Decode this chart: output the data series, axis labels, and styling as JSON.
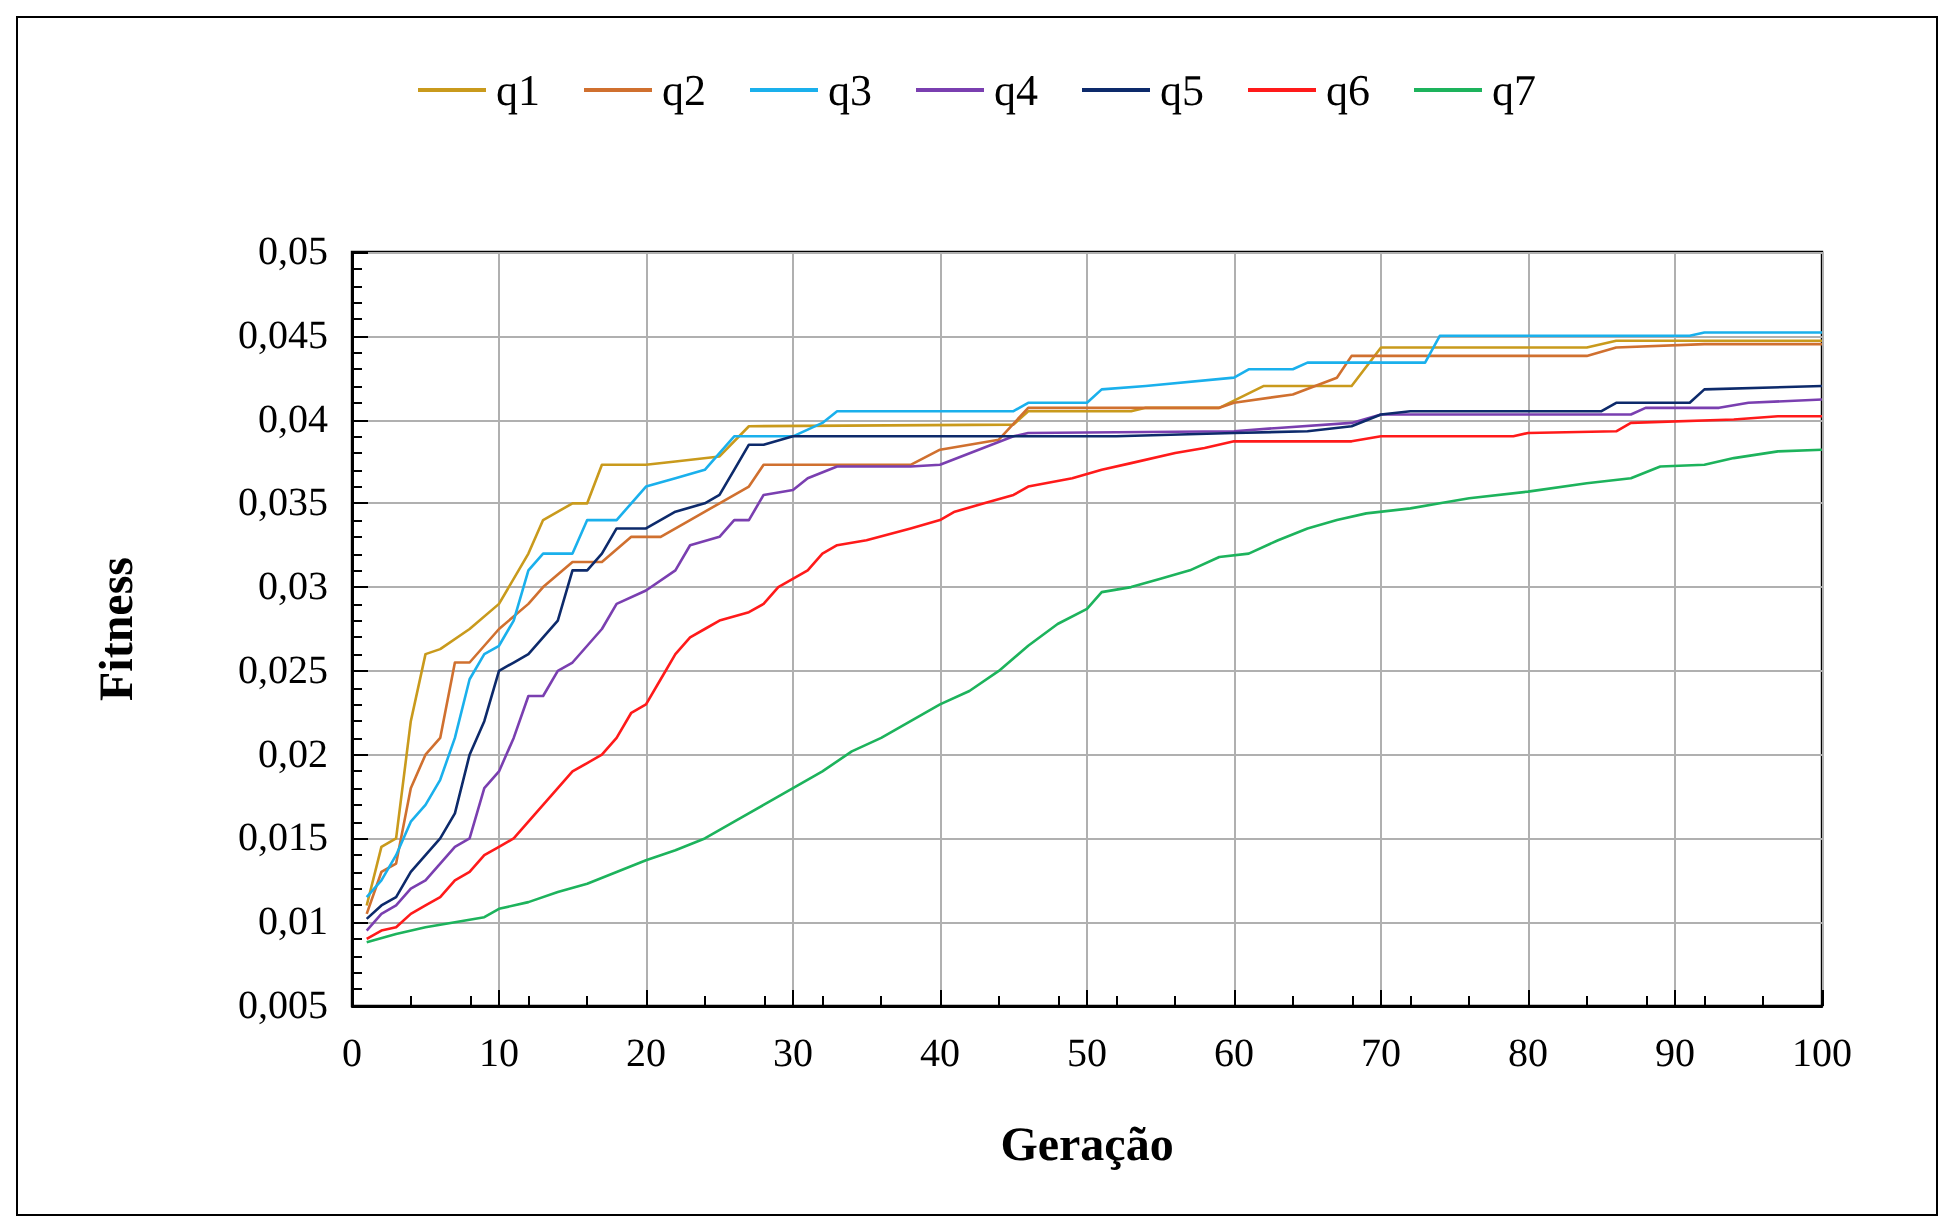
{
  "chart_data": {
    "type": "line",
    "xlabel": "Geração",
    "ylabel": "Fitness",
    "xlim": [
      0,
      100
    ],
    "xticks": [
      0,
      10,
      20,
      30,
      40,
      50,
      60,
      70,
      80,
      90,
      100
    ],
    "ylim": [
      0.005,
      0.05
    ],
    "yticks": [
      {
        "value": 0.005,
        "label": "0,005"
      },
      {
        "value": 0.01,
        "label": "0,01"
      },
      {
        "value": 0.015,
        "label": "0,015"
      },
      {
        "value": 0.02,
        "label": "0,02"
      },
      {
        "value": 0.025,
        "label": "0,025"
      },
      {
        "value": 0.03,
        "label": "0,03"
      },
      {
        "value": 0.035,
        "label": "0,035"
      },
      {
        "value": 0.04,
        "label": "0,04"
      },
      {
        "value": 0.045,
        "label": "0,045"
      },
      {
        "value": 0.05,
        "label": "0,05"
      }
    ],
    "grid": true,
    "legend": "top",
    "marker": "none",
    "line_style": "solid",
    "series": [
      {
        "name": "q1",
        "color": "#c99a1c",
        "x": [
          1,
          2,
          3,
          4,
          5,
          6,
          8,
          10,
          12,
          13,
          15,
          16,
          17,
          20,
          22,
          25,
          27,
          45,
          46,
          53,
          54,
          59,
          62,
          68,
          70,
          84,
          86,
          100
        ],
        "values": [
          0.011,
          0.0145,
          0.015,
          0.022,
          0.026,
          0.0263,
          0.0275,
          0.029,
          0.032,
          0.034,
          0.035,
          0.035,
          0.0373,
          0.0373,
          0.0375,
          0.0378,
          0.0396,
          0.0397,
          0.0405,
          0.0405,
          0.0407,
          0.0407,
          0.042,
          0.042,
          0.0443,
          0.0443,
          0.0447,
          0.0447
        ]
      },
      {
        "name": "q2",
        "color": "#d0702f",
        "x": [
          1,
          2,
          3,
          4,
          5,
          6,
          7,
          8,
          10,
          12,
          13,
          15,
          17,
          19,
          21,
          23,
          25,
          27,
          28,
          38,
          40,
          44,
          46,
          59,
          60,
          64,
          67,
          68,
          84,
          86,
          92,
          100
        ],
        "values": [
          0.0105,
          0.013,
          0.0135,
          0.018,
          0.02,
          0.021,
          0.0255,
          0.0255,
          0.0275,
          0.029,
          0.03,
          0.0315,
          0.0315,
          0.033,
          0.033,
          0.034,
          0.035,
          0.036,
          0.0373,
          0.0373,
          0.0382,
          0.0388,
          0.0407,
          0.0407,
          0.041,
          0.0415,
          0.0425,
          0.0438,
          0.0438,
          0.0443,
          0.0445,
          0.0445
        ]
      },
      {
        "name": "q3",
        "color": "#1ab0ec",
        "x": [
          1,
          2,
          3,
          4,
          5,
          6,
          7,
          8,
          9,
          10,
          11,
          12,
          13,
          15,
          16,
          18,
          19,
          20,
          22,
          24,
          26,
          30,
          32,
          33,
          45,
          46,
          50,
          51,
          54,
          60,
          61,
          64,
          65,
          73,
          74,
          91,
          92,
          100
        ],
        "values": [
          0.0115,
          0.0125,
          0.014,
          0.016,
          0.017,
          0.0185,
          0.021,
          0.0245,
          0.026,
          0.0265,
          0.028,
          0.031,
          0.032,
          0.032,
          0.034,
          0.034,
          0.035,
          0.036,
          0.0365,
          0.037,
          0.039,
          0.039,
          0.0398,
          0.0405,
          0.0405,
          0.041,
          0.041,
          0.0418,
          0.042,
          0.0425,
          0.043,
          0.043,
          0.0434,
          0.0434,
          0.045,
          0.045,
          0.0452,
          0.0452
        ]
      },
      {
        "name": "q4",
        "color": "#7a3fb0",
        "x": [
          1,
          2,
          3,
          4,
          5,
          6,
          7,
          8,
          9,
          10,
          11,
          12,
          13,
          14,
          15,
          16,
          17,
          18,
          20,
          22,
          23,
          25,
          26,
          27,
          28,
          30,
          31,
          33,
          38,
          40,
          45,
          46,
          60,
          63,
          68,
          70,
          87,
          88,
          93,
          95,
          100
        ],
        "values": [
          0.0095,
          0.0105,
          0.011,
          0.012,
          0.0125,
          0.0135,
          0.0145,
          0.015,
          0.018,
          0.019,
          0.021,
          0.0235,
          0.0235,
          0.025,
          0.0255,
          0.0265,
          0.0275,
          0.029,
          0.0298,
          0.031,
          0.0325,
          0.033,
          0.034,
          0.034,
          0.0355,
          0.0358,
          0.0365,
          0.0372,
          0.0372,
          0.0373,
          0.039,
          0.0392,
          0.0393,
          0.0395,
          0.0398,
          0.0403,
          0.0403,
          0.0407,
          0.0407,
          0.041,
          0.0412
        ]
      },
      {
        "name": "q5",
        "color": "#0d2a6b",
        "x": [
          1,
          2,
          3,
          4,
          5,
          6,
          7,
          8,
          9,
          10,
          11,
          12,
          13,
          14,
          15,
          16,
          17,
          18,
          20,
          22,
          24,
          25,
          26,
          27,
          28,
          30,
          52,
          60,
          65,
          68,
          70,
          72,
          85,
          86,
          91,
          92,
          100
        ],
        "values": [
          0.0102,
          0.011,
          0.0115,
          0.013,
          0.014,
          0.015,
          0.0165,
          0.02,
          0.022,
          0.025,
          0.0255,
          0.026,
          0.027,
          0.028,
          0.031,
          0.031,
          0.032,
          0.0335,
          0.0335,
          0.0345,
          0.035,
          0.0355,
          0.037,
          0.0385,
          0.0385,
          0.039,
          0.039,
          0.0392,
          0.0393,
          0.0396,
          0.0403,
          0.0405,
          0.0405,
          0.041,
          0.041,
          0.0418,
          0.042
        ]
      },
      {
        "name": "q6",
        "color": "#ff1a1a",
        "x": [
          1,
          2,
          3,
          4,
          5,
          6,
          7,
          8,
          9,
          10,
          11,
          12,
          13,
          14,
          15,
          16,
          17,
          18,
          19,
          20,
          21,
          22,
          23,
          24,
          25,
          27,
          28,
          29,
          31,
          32,
          33,
          35,
          38,
          40,
          41,
          43,
          45,
          46,
          49,
          51,
          53,
          56,
          58,
          60,
          68,
          70,
          79,
          80,
          86,
          87,
          94,
          97,
          100
        ],
        "values": [
          0.009,
          0.0095,
          0.0097,
          0.0105,
          0.011,
          0.0115,
          0.0125,
          0.013,
          0.014,
          0.0145,
          0.015,
          0.016,
          0.017,
          0.018,
          0.019,
          0.0195,
          0.02,
          0.021,
          0.0225,
          0.023,
          0.0245,
          0.026,
          0.027,
          0.0275,
          0.028,
          0.0285,
          0.029,
          0.03,
          0.031,
          0.032,
          0.0325,
          0.0328,
          0.0335,
          0.034,
          0.0345,
          0.035,
          0.0355,
          0.036,
          0.0365,
          0.037,
          0.0374,
          0.038,
          0.0383,
          0.0387,
          0.0387,
          0.039,
          0.039,
          0.0392,
          0.0393,
          0.0398,
          0.04,
          0.0402,
          0.0402
        ]
      },
      {
        "name": "q7",
        "color": "#1db35c",
        "x": [
          1,
          3,
          5,
          7,
          9,
          10,
          12,
          14,
          16,
          18,
          20,
          22,
          24,
          26,
          28,
          30,
          32,
          34,
          36,
          38,
          40,
          42,
          44,
          46,
          48,
          50,
          51,
          53,
          55,
          57,
          59,
          61,
          63,
          65,
          67,
          69,
          72,
          74,
          76,
          80,
          84,
          87,
          89,
          92,
          94,
          97,
          100
        ],
        "values": [
          0.0088,
          0.0093,
          0.0097,
          0.01,
          0.0103,
          0.0108,
          0.0112,
          0.0118,
          0.0123,
          0.013,
          0.0137,
          0.0143,
          0.015,
          0.016,
          0.017,
          0.018,
          0.019,
          0.0202,
          0.021,
          0.022,
          0.023,
          0.0238,
          0.025,
          0.0265,
          0.0278,
          0.0287,
          0.0297,
          0.03,
          0.0305,
          0.031,
          0.0318,
          0.032,
          0.0328,
          0.0335,
          0.034,
          0.0344,
          0.0347,
          0.035,
          0.0353,
          0.0357,
          0.0362,
          0.0365,
          0.0372,
          0.0373,
          0.0377,
          0.0381,
          0.0382
        ]
      }
    ]
  }
}
